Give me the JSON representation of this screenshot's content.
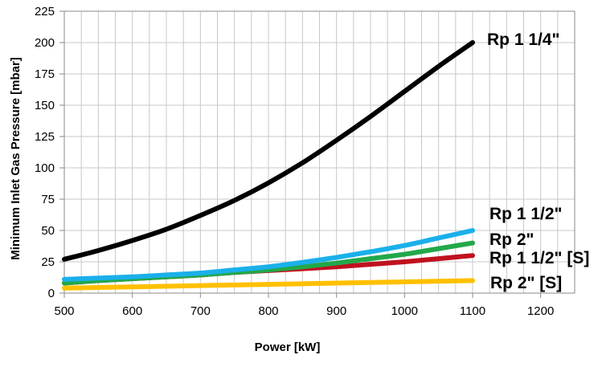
{
  "chart_data": {
    "type": "line",
    "title": "",
    "xlabel": "Power  [kW]",
    "ylabel": "Minimum Inlet Gas Pressure [mbar]",
    "xlim": [
      500,
      1250
    ],
    "ylim": [
      0,
      225
    ],
    "x_ticks": [
      500,
      600,
      700,
      800,
      900,
      1000,
      1100,
      1200
    ],
    "y_ticks": [
      0,
      25,
      50,
      75,
      100,
      125,
      150,
      175,
      200,
      225
    ],
    "grid": true,
    "grid_x_step": 25,
    "legend": "inline labels at right end of each line",
    "series": [
      {
        "name": "Rp 1 1/4\"",
        "color": "#000000",
        "x": [
          500,
          550,
          600,
          650,
          700,
          750,
          800,
          850,
          900,
          950,
          1000,
          1050,
          1100
        ],
        "y": [
          27,
          34,
          42,
          51,
          62,
          74,
          88,
          104,
          122,
          141,
          161,
          181,
          200
        ]
      },
      {
        "name": "Rp 1 1/2\"",
        "color": "#1ab0ea",
        "x": [
          500,
          550,
          600,
          650,
          700,
          750,
          800,
          850,
          900,
          950,
          1000,
          1050,
          1100
        ],
        "y": [
          11,
          12,
          13,
          14.5,
          16,
          18.5,
          21,
          24.5,
          28.5,
          33,
          38,
          44,
          50
        ]
      },
      {
        "name": "Rp 2\"",
        "color": "#22a84a",
        "x": [
          500,
          550,
          600,
          650,
          700,
          750,
          800,
          850,
          900,
          950,
          1000,
          1050,
          1100
        ],
        "y": [
          8,
          10,
          11.5,
          13,
          14.5,
          16.5,
          18.5,
          21,
          24,
          27.5,
          31,
          35.5,
          40
        ]
      },
      {
        "name": "Rp 1 1/2\" [S]",
        "color": "#c0111f",
        "x": [
          500,
          550,
          600,
          650,
          700,
          750,
          800,
          850,
          900,
          950,
          1000,
          1050,
          1100
        ],
        "y": [
          8,
          10,
          11.5,
          13,
          14.5,
          16.5,
          18,
          19.5,
          21,
          23,
          25,
          27.5,
          30
        ]
      },
      {
        "name": "Rp  2\" [S]",
        "color": "#ffc000",
        "x": [
          500,
          600,
          700,
          800,
          900,
          1000,
          1100
        ],
        "y": [
          4,
          5,
          6,
          7,
          8,
          9,
          10
        ]
      }
    ]
  }
}
